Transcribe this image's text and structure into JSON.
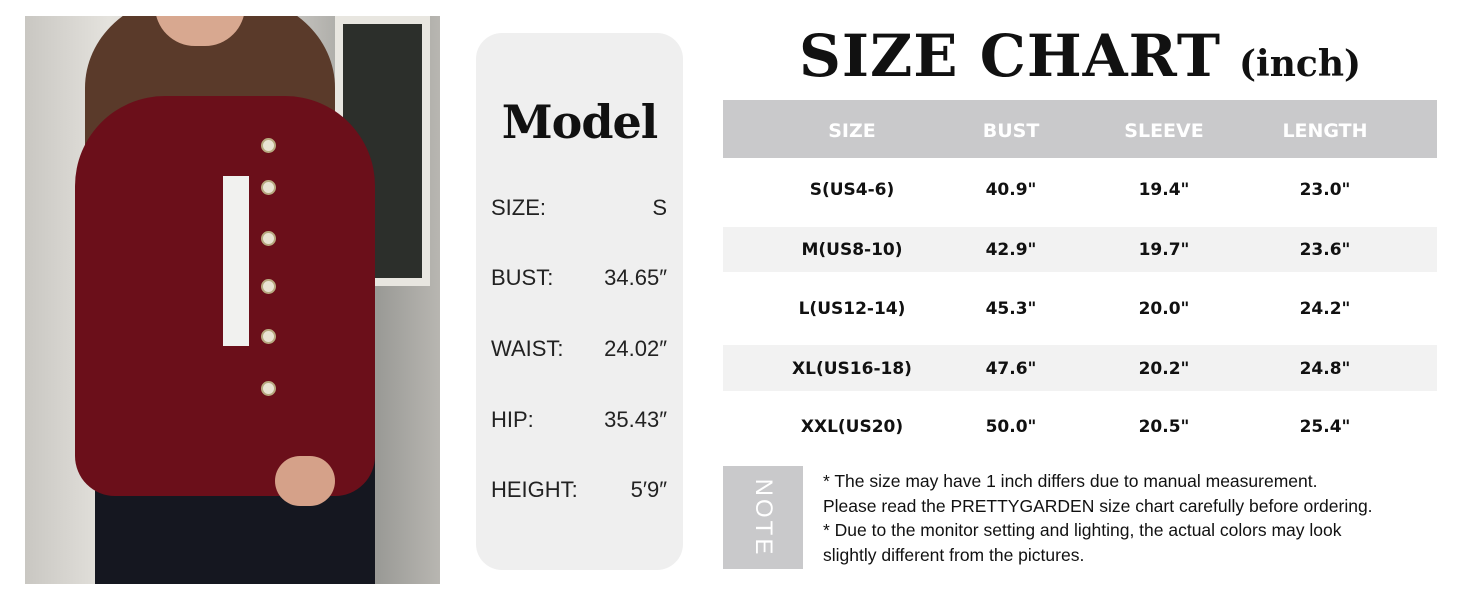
{
  "model_card": {
    "title": "Model",
    "rows": [
      {
        "label": "SIZE:",
        "value": "S"
      },
      {
        "label": "BUST:",
        "value": "34.65″"
      },
      {
        "label": "WAIST:",
        "value": "24.02″"
      },
      {
        "label": "HIP:",
        "value": "35.43″"
      },
      {
        "label": "HEIGHT:",
        "value": "5′9″"
      }
    ]
  },
  "size_chart": {
    "title": "SIZE CHART",
    "unit": "(inch)",
    "headers": [
      "SIZE",
      "BUST",
      "SLEEVE",
      "LENGTH"
    ],
    "rows": [
      [
        "S(US4-6)",
        "40.9\"",
        "19.4\"",
        "23.0\""
      ],
      [
        "M(US8-10)",
        "42.9\"",
        "19.7\"",
        "23.6\""
      ],
      [
        "L(US12-14)",
        "45.3\"",
        "20.0\"",
        "24.2\""
      ],
      [
        "XL(US16-18)",
        "47.6\"",
        "20.2\"",
        "24.8\""
      ],
      [
        "XXL(US20)",
        "50.0\"",
        "20.5\"",
        "25.4\""
      ]
    ]
  },
  "note": {
    "label": "NOTE",
    "lines": [
      "* The size may have 1 inch differs due to manual measurement.",
      "Please read the PRETTYGARDEN size chart carefully before ordering.",
      "* Due to the monitor setting and lighting, the actual colors may look",
      "slightly different from the pictures."
    ]
  },
  "colors": {
    "header_gray": "#c9c9cb",
    "stripe_gray": "#f2f2f2",
    "card_bg": "#efefef",
    "cardigan": "#6b0f1a"
  }
}
